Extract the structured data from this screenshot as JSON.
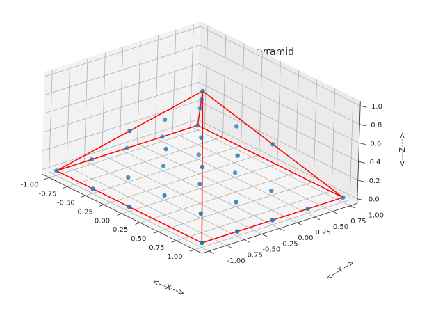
{
  "chart_data": {
    "type": "scatter",
    "projection": "3d",
    "title": "Grid points in unit pyramid",
    "xlabel": "<---X--->",
    "ylabel": "<---Y--->",
    "zlabel": "<---Z--->",
    "xlim": [
      -1,
      1
    ],
    "ylim": [
      -1,
      1
    ],
    "zlim": [
      0,
      1
    ],
    "x_ticks": [
      "-1.00",
      "-0.75",
      "-0.50",
      "-0.25",
      "0.00",
      "0.25",
      "0.50",
      "0.75",
      "1.00"
    ],
    "y_ticks": [
      "-1.00",
      "-0.75",
      "-0.50",
      "-0.25",
      "0.00",
      "0.25",
      "0.50",
      "0.75",
      "1.00"
    ],
    "z_ticks": [
      "0.0",
      "0.2",
      "0.4",
      "0.6",
      "0.8",
      "1.0"
    ],
    "grid": true,
    "point_color": "#1f77b4",
    "edge_color": "#ff0000",
    "points": [
      {
        "x": -1,
        "y": -1,
        "z": 0
      },
      {
        "x": -0.5,
        "y": -1,
        "z": 0
      },
      {
        "x": 0,
        "y": -1,
        "z": 0
      },
      {
        "x": 1,
        "y": -1,
        "z": 0
      },
      {
        "x": -1,
        "y": -0.5,
        "z": 0
      },
      {
        "x": 1,
        "y": -0.5,
        "z": 0
      },
      {
        "x": -1,
        "y": 0,
        "z": 0
      },
      {
        "x": 1,
        "y": 0,
        "z": 0
      },
      {
        "x": -1,
        "y": 0.5,
        "z": 0
      },
      {
        "x": 1,
        "y": 0.5,
        "z": 0
      },
      {
        "x": -1,
        "y": 1,
        "z": 0
      },
      {
        "x": 1,
        "y": 1,
        "z": 0
      },
      {
        "x": -0.5,
        "y": -0.5,
        "z": 0
      },
      {
        "x": 0,
        "y": -0.5,
        "z": 0
      },
      {
        "x": 0.5,
        "y": -0.5,
        "z": 0
      },
      {
        "x": -0.5,
        "y": 0,
        "z": 0
      },
      {
        "x": 0,
        "y": 0,
        "z": 0
      },
      {
        "x": 0.5,
        "y": 0,
        "z": 0
      },
      {
        "x": -0.5,
        "y": 0.5,
        "z": 0
      },
      {
        "x": 0,
        "y": 0.5,
        "z": 0
      },
      {
        "x": 0.5,
        "y": 0.5,
        "z": 0
      },
      {
        "x": -0.5,
        "y": -0.5,
        "z": 0.5
      },
      {
        "x": 0.5,
        "y": -0.5,
        "z": 0.5
      },
      {
        "x": -0.5,
        "y": 0.5,
        "z": 0.5
      },
      {
        "x": 0.5,
        "y": 0.5,
        "z": 0.5
      },
      {
        "x": 0,
        "y": -0.5,
        "z": 0.5
      },
      {
        "x": 0,
        "y": 0.5,
        "z": 0.5
      },
      {
        "x": -0.5,
        "y": 0,
        "z": 0.5
      },
      {
        "x": 0.5,
        "y": 0,
        "z": 0.5
      },
      {
        "x": 0,
        "y": 0,
        "z": 0.5
      },
      {
        "x": -0.25,
        "y": 0.25,
        "z": 0.75
      },
      {
        "x": 0,
        "y": 0,
        "z": 1
      }
    ],
    "edges": [
      [
        [
          -1,
          -1,
          0
        ],
        [
          1,
          -1,
          0
        ]
      ],
      [
        [
          1,
          -1,
          0
        ],
        [
          1,
          1,
          0
        ]
      ],
      [
        [
          1,
          1,
          0
        ],
        [
          -1,
          1,
          0
        ]
      ],
      [
        [
          -1,
          1,
          0
        ],
        [
          -1,
          -1,
          0
        ]
      ],
      [
        [
          -1,
          -1,
          0
        ],
        [
          0,
          0,
          1
        ]
      ],
      [
        [
          1,
          -1,
          0
        ],
        [
          0,
          0,
          1
        ]
      ],
      [
        [
          1,
          1,
          0
        ],
        [
          0,
          0,
          1
        ]
      ],
      [
        [
          -1,
          1,
          0
        ],
        [
          0,
          0,
          1
        ]
      ]
    ]
  }
}
